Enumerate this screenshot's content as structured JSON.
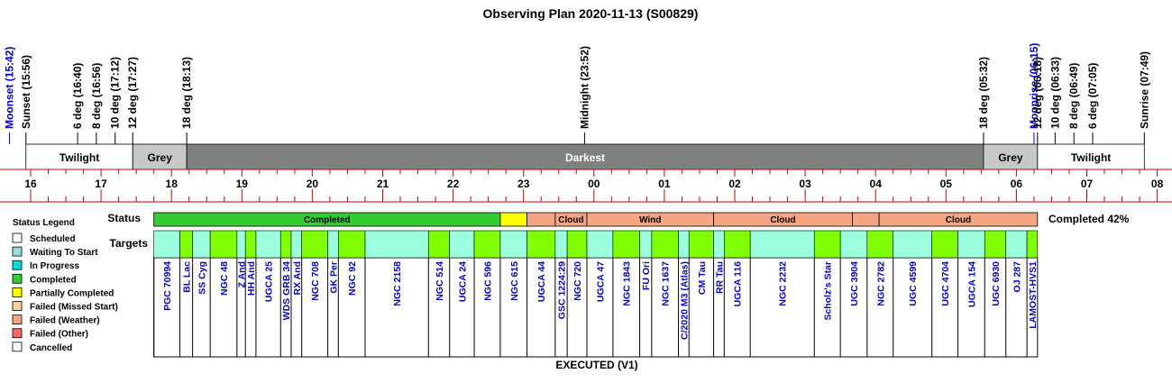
{
  "title": "Observing Plan 2020-11-13 (S00829)",
  "labels": {
    "status": "Status",
    "targets": "Targets",
    "completed_summary": "Completed 42%",
    "executed": "EXECUTED (V1)",
    "legend_title": "Status Legend"
  },
  "colors": {
    "completed": "#33cc33",
    "partially_completed": "#ffff00",
    "failed_weather": "#f4a582",
    "target_green": "#80ff00",
    "target_aqua": "#99ffdd",
    "scheduled": "#ffffff",
    "waiting_to_start": "#99dddd",
    "in_progress": "#00dddd",
    "failed_missed_start": "#ffcc99",
    "failed_other": "#ff6666",
    "cancelled": "#ffffff",
    "darkest": "#808080",
    "grey": "#c8c8c8",
    "twilight": "#ffffff",
    "axis_red": "#cc0000",
    "moon_blue": "#0000cc",
    "target_text": "#0000cc"
  },
  "legend": [
    {
      "label": "Scheduled",
      "color": "#ffffff"
    },
    {
      "label": "Waiting To Start",
      "color": "#99dddd"
    },
    {
      "label": "In Progress",
      "color": "#00dddd"
    },
    {
      "label": "Completed",
      "color": "#33cc33"
    },
    {
      "label": "Partially Completed",
      "color": "#ffff00"
    },
    {
      "label": "Failed (Missed Start)",
      "color": "#ffcc99"
    },
    {
      "label": "Failed (Weather)",
      "color": "#f4a582"
    },
    {
      "label": "Failed (Other)",
      "color": "#ff6666"
    },
    {
      "label": "Cancelled",
      "color": "#ffffff"
    }
  ],
  "chart_data": {
    "type": "timeline",
    "title": "Observing Plan 2020-11-13 (S00829)",
    "x_range_hours": [
      15.8,
      32.1
    ],
    "x_ticks": [
      {
        "h": 16,
        "label": "16"
      },
      {
        "h": 17,
        "label": "17"
      },
      {
        "h": 18,
        "label": "18"
      },
      {
        "h": 19,
        "label": "19"
      },
      {
        "h": 20,
        "label": "20"
      },
      {
        "h": 21,
        "label": "21"
      },
      {
        "h": 22,
        "label": "22"
      },
      {
        "h": 23,
        "label": "23"
      },
      {
        "h": 24,
        "label": "00"
      },
      {
        "h": 25,
        "label": "01"
      },
      {
        "h": 26,
        "label": "02"
      },
      {
        "h": 27,
        "label": "03"
      },
      {
        "h": 28,
        "label": "04"
      },
      {
        "h": 29,
        "label": "05"
      },
      {
        "h": 30,
        "label": "06"
      },
      {
        "h": 31,
        "label": "07"
      },
      {
        "h": 32,
        "label": "08"
      }
    ],
    "events": [
      {
        "label": "Moonset (15:42)",
        "h": 15.7,
        "moon": true
      },
      {
        "label": "Sunset (15:56)",
        "h": 15.933
      },
      {
        "label": "6 deg (16:40)",
        "h": 16.667
      },
      {
        "label": "8 deg (16:56)",
        "h": 16.933
      },
      {
        "label": "10 deg (17:12)",
        "h": 17.2
      },
      {
        "label": "12 deg (17:27)",
        "h": 17.45
      },
      {
        "label": "18 deg (18:13)",
        "h": 18.217
      },
      {
        "label": "Midnight (23:52)",
        "h": 23.867
      },
      {
        "label": "18 deg (05:32)",
        "h": 29.533
      },
      {
        "label": "Moonrise (06:15)",
        "h": 30.25,
        "moon": true
      },
      {
        "label": "12 deg (06:18)",
        "h": 30.3
      },
      {
        "label": "10 deg (06:33)",
        "h": 30.55
      },
      {
        "label": "8 deg (06:49)",
        "h": 30.817
      },
      {
        "label": "6 deg (07:05)",
        "h": 31.083
      },
      {
        "label": "Sunrise (07:49)",
        "h": 31.817
      }
    ],
    "bands": [
      {
        "label": "Twilight",
        "start": 15.933,
        "end": 17.45,
        "kind": "twilight"
      },
      {
        "label": "Grey",
        "start": 17.45,
        "end": 18.217,
        "kind": "grey"
      },
      {
        "label": "Darkest",
        "start": 18.217,
        "end": 29.533,
        "kind": "darkest"
      },
      {
        "label": "Grey",
        "start": 29.533,
        "end": 30.3,
        "kind": "grey"
      },
      {
        "label": "Twilight",
        "start": 30.3,
        "end": 31.817,
        "kind": "twilight"
      }
    ],
    "status_segments": [
      {
        "label": "Completed",
        "start": 17.75,
        "end": 22.67,
        "status": "completed"
      },
      {
        "label": "",
        "start": 22.67,
        "end": 23.05,
        "status": "partially_completed"
      },
      {
        "label": "",
        "start": 23.05,
        "end": 23.45,
        "status": "failed_weather"
      },
      {
        "label": "Cloud",
        "start": 23.45,
        "end": 23.9,
        "status": "failed_weather"
      },
      {
        "label": "Wind",
        "start": 23.9,
        "end": 25.7,
        "status": "failed_weather"
      },
      {
        "label": "Cloud",
        "start": 25.7,
        "end": 27.67,
        "status": "failed_weather"
      },
      {
        "label": "",
        "start": 27.67,
        "end": 28.05,
        "status": "failed_weather"
      },
      {
        "label": "Cloud",
        "start": 28.05,
        "end": 30.3,
        "status": "failed_weather"
      }
    ],
    "targets": [
      {
        "name": "PGC 70994",
        "start": 17.75,
        "end": 18.12,
        "fill": "aqua"
      },
      {
        "name": "BL Lac",
        "start": 18.12,
        "end": 18.3,
        "fill": "green"
      },
      {
        "name": "SS Cyg",
        "start": 18.3,
        "end": 18.55,
        "fill": "aqua"
      },
      {
        "name": "NGC 48",
        "start": 18.55,
        "end": 18.93,
        "fill": "green"
      },
      {
        "name": "Z And",
        "start": 18.93,
        "end": 19.05,
        "fill": "aqua"
      },
      {
        "name": "HH And",
        "start": 19.05,
        "end": 19.2,
        "fill": "green"
      },
      {
        "name": "UGCA 25",
        "start": 19.2,
        "end": 19.55,
        "fill": "aqua"
      },
      {
        "name": "WDS GRB 34",
        "start": 19.55,
        "end": 19.7,
        "fill": "green"
      },
      {
        "name": "RX And",
        "start": 19.7,
        "end": 19.85,
        "fill": "aqua"
      },
      {
        "name": "NGC 708",
        "start": 19.85,
        "end": 20.22,
        "fill": "green"
      },
      {
        "name": "GK Per",
        "start": 20.22,
        "end": 20.37,
        "fill": "aqua"
      },
      {
        "name": "NGC 92",
        "start": 20.37,
        "end": 20.75,
        "fill": "green"
      },
      {
        "name": "NGC 2158",
        "start": 20.75,
        "end": 21.65,
        "fill": "aqua"
      },
      {
        "name": "NGC 514",
        "start": 21.65,
        "end": 21.95,
        "fill": "green"
      },
      {
        "name": "UGCA 24",
        "start": 21.95,
        "end": 22.3,
        "fill": "aqua"
      },
      {
        "name": "NGC 596",
        "start": 22.3,
        "end": 22.67,
        "fill": "green"
      },
      {
        "name": "NGC 615",
        "start": 22.67,
        "end": 23.05,
        "fill": "aqua"
      },
      {
        "name": "UGCA 44",
        "start": 23.05,
        "end": 23.45,
        "fill": "green"
      },
      {
        "name": "GSC 1224:29",
        "start": 23.45,
        "end": 23.62,
        "fill": "aqua"
      },
      {
        "name": "NGC 720",
        "start": 23.62,
        "end": 23.9,
        "fill": "green"
      },
      {
        "name": "UGCA 47",
        "start": 23.9,
        "end": 24.27,
        "fill": "aqua"
      },
      {
        "name": "NGC 1843",
        "start": 24.27,
        "end": 24.65,
        "fill": "green"
      },
      {
        "name": "FU Ori",
        "start": 24.65,
        "end": 24.82,
        "fill": "aqua"
      },
      {
        "name": "NGC 1637",
        "start": 24.82,
        "end": 25.2,
        "fill": "green"
      },
      {
        "name": "C/2020 M3 (Atlas)",
        "start": 25.2,
        "end": 25.35,
        "fill": "aqua"
      },
      {
        "name": "CM Tau",
        "start": 25.35,
        "end": 25.7,
        "fill": "green"
      },
      {
        "name": "RR Tau",
        "start": 25.7,
        "end": 25.85,
        "fill": "aqua"
      },
      {
        "name": "UGCA 116",
        "start": 25.85,
        "end": 26.22,
        "fill": "green"
      },
      {
        "name": "NGC 2232",
        "start": 26.22,
        "end": 27.13,
        "fill": "aqua"
      },
      {
        "name": "Scholz's Star",
        "start": 27.13,
        "end": 27.5,
        "fill": "green"
      },
      {
        "name": "UGC 3904",
        "start": 27.5,
        "end": 27.88,
        "fill": "aqua"
      },
      {
        "name": "NGC 2782",
        "start": 27.88,
        "end": 28.25,
        "fill": "green"
      },
      {
        "name": "UGC 4599",
        "start": 28.25,
        "end": 28.8,
        "fill": "aqua"
      },
      {
        "name": "UGC 4704",
        "start": 28.8,
        "end": 29.17,
        "fill": "green"
      },
      {
        "name": "UGCA 154",
        "start": 29.17,
        "end": 29.55,
        "fill": "aqua"
      },
      {
        "name": "UGC 6930",
        "start": 29.55,
        "end": 29.85,
        "fill": "green"
      },
      {
        "name": "OJ 287",
        "start": 29.85,
        "end": 30.15,
        "fill": "aqua"
      },
      {
        "name": "LAMOST-HVS1",
        "start": 30.15,
        "end": 30.3,
        "fill": "green"
      }
    ]
  }
}
